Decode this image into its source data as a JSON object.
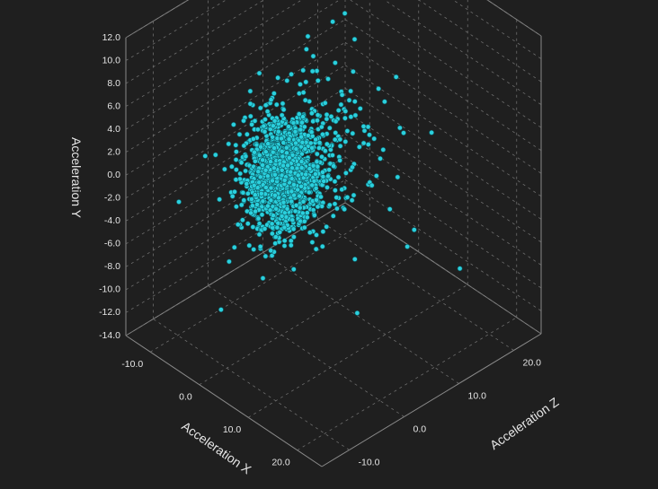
{
  "chart_data": {
    "type": "scatter3d",
    "x_axis": {
      "label": "Acceleration X",
      "ticks": [
        "-10.0",
        "0.0",
        "10.0",
        "20.0"
      ],
      "range": [
        -15,
        25
      ]
    },
    "y_axis": {
      "label": "Acceleration Y",
      "ticks": [
        "12.0",
        "10.0",
        "8.0",
        "6.0",
        "4.0",
        "2.0",
        "0.0",
        "-2.0",
        "-4.0",
        "-6.0",
        "-8.0",
        "-10.0",
        "-12.0",
        "-14.0"
      ],
      "range": [
        -14,
        12
      ]
    },
    "z_axis": {
      "label": "Acceleration Z",
      "ticks": [
        "-10.0",
        "0.0",
        "10.0",
        "20.0"
      ],
      "range": [
        -15,
        25
      ]
    },
    "marker_color": "#2bd0dd",
    "background": "#1f1f1f",
    "cluster": {
      "center": [
        0,
        0,
        0
      ],
      "spread": [
        2.5,
        2.2,
        2.5
      ],
      "count": 1400
    },
    "outliers": [
      {
        "x": -12,
        "y": -3.5,
        "z": -8
      },
      {
        "x": -9,
        "y": -13.5,
        "z": -3
      },
      {
        "x": -4,
        "y": -7,
        "z": -6
      },
      {
        "x": -10,
        "y": 0.2,
        "z": -5
      },
      {
        "x": -9,
        "y": 0.3,
        "z": -4
      },
      {
        "x": 2,
        "y": -15,
        "z": 12
      },
      {
        "x": 6,
        "y": -8,
        "z": 8
      },
      {
        "x": 10,
        "y": -7.5,
        "z": 14
      },
      {
        "x": 14,
        "y": -10,
        "z": 20
      },
      {
        "x": -8,
        "y": 12.5,
        "z": 20
      },
      {
        "x": -6,
        "y": 11,
        "z": 14
      },
      {
        "x": -3,
        "y": 9,
        "z": 12
      },
      {
        "x": -5,
        "y": 8,
        "z": 16
      },
      {
        "x": 2,
        "y": 8,
        "z": 8
      },
      {
        "x": 4,
        "y": 0,
        "z": 18
      },
      {
        "x": 6,
        "y": -1,
        "z": 22
      },
      {
        "x": -2,
        "y": -4,
        "z": 15
      },
      {
        "x": 5,
        "y": -3,
        "z": 12
      },
      {
        "x": -4,
        "y": 5,
        "z": 10
      },
      {
        "x": 3,
        "y": 4,
        "z": 15
      },
      {
        "x": -7,
        "y": -1,
        "z": -2
      },
      {
        "x": 0,
        "y": 6,
        "z": 4
      },
      {
        "x": -3,
        "y": 7,
        "z": 2
      },
      {
        "x": 4,
        "y": -5,
        "z": 4
      },
      {
        "x": 8,
        "y": -2,
        "z": 14
      },
      {
        "x": -2,
        "y": -10,
        "z": 4
      },
      {
        "x": 1,
        "y": 3,
        "z": 20
      },
      {
        "x": 2,
        "y": 2,
        "z": 17
      },
      {
        "x": -6,
        "y": 3,
        "z": 12
      },
      {
        "x": 7,
        "y": 1,
        "z": 16
      }
    ]
  }
}
